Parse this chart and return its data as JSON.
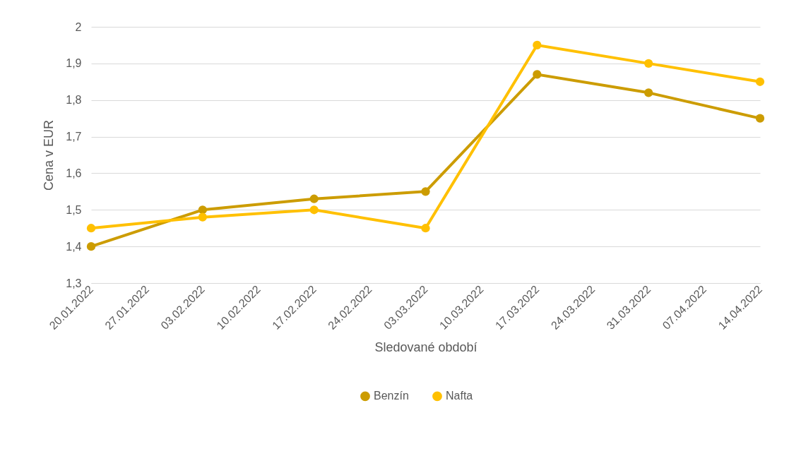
{
  "chart_data": {
    "type": "line",
    "xlabel": "Sledované období",
    "ylabel": "Cena v EUR",
    "xlim": [
      "2022-01-20",
      "2022-04-14"
    ],
    "xticks": [
      {
        "value": "2022-01-20",
        "label": "20.01.2022"
      },
      {
        "value": "2022-01-27",
        "label": "27.01.2022"
      },
      {
        "value": "2022-02-03",
        "label": "03.02.2022"
      },
      {
        "value": "2022-02-10",
        "label": "10.02.2022"
      },
      {
        "value": "2022-02-17",
        "label": "17.02.2022"
      },
      {
        "value": "2022-02-24",
        "label": "24.02.2022"
      },
      {
        "value": "2022-03-03",
        "label": "03.03.2022"
      },
      {
        "value": "2022-03-10",
        "label": "10.03.2022"
      },
      {
        "value": "2022-03-17",
        "label": "17.03.2022"
      },
      {
        "value": "2022-03-24",
        "label": "24.03.2022"
      },
      {
        "value": "2022-03-31",
        "label": "31.03.2022"
      },
      {
        "value": "2022-04-07",
        "label": "07.04.2022"
      },
      {
        "value": "2022-04-14",
        "label": "14.04.2022"
      }
    ],
    "x": [
      "2022-01-20",
      "2022-02-03",
      "2022-02-17",
      "2022-03-03",
      "2022-03-17",
      "2022-03-31",
      "2022-04-14"
    ],
    "ylim": [
      1.3,
      2
    ],
    "yticks": [
      {
        "value": 1.3,
        "label": "1,3"
      },
      {
        "value": 1.4,
        "label": "1,4"
      },
      {
        "value": 1.5,
        "label": "1,5"
      },
      {
        "value": 1.6,
        "label": "1,6"
      },
      {
        "value": 1.7,
        "label": "1,7"
      },
      {
        "value": 1.8,
        "label": "1,8"
      },
      {
        "value": 1.9,
        "label": "1,9"
      },
      {
        "value": 2,
        "label": "2"
      }
    ],
    "series": [
      {
        "name": "Benzín",
        "color": "#cc9c00",
        "values": [
          1.4,
          1.5,
          1.53,
          1.55,
          1.87,
          1.82,
          1.75
        ]
      },
      {
        "name": "Nafta",
        "color": "#ffc000",
        "values": [
          1.45,
          1.48,
          1.5,
          1.45,
          1.95,
          1.9,
          1.85
        ]
      }
    ],
    "grid": "y",
    "legend": "bottom",
    "marker": "circle",
    "line_style": "solid"
  }
}
